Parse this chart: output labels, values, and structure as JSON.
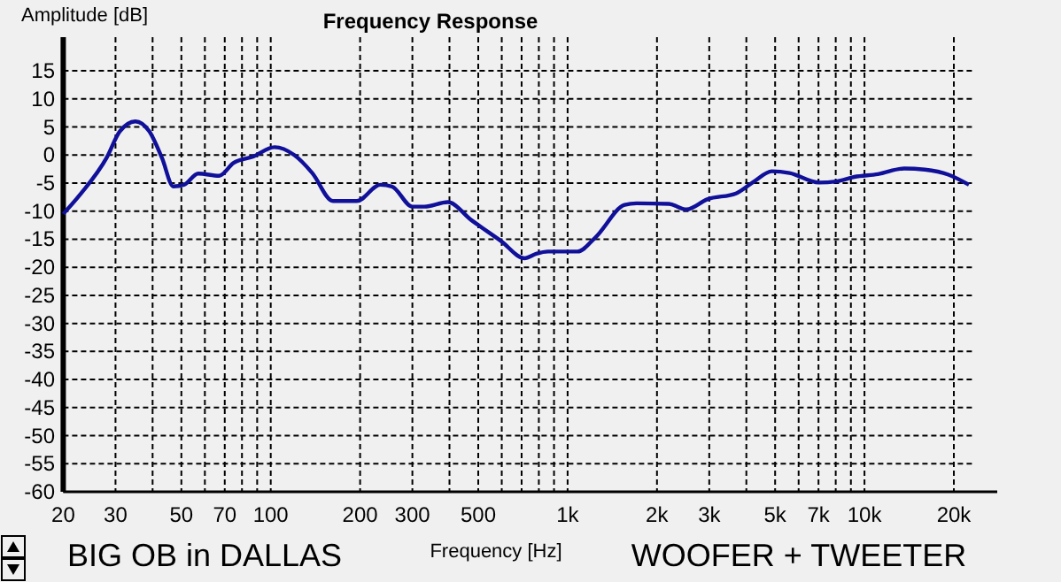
{
  "chart_data": {
    "type": "line",
    "title": "Frequency Response",
    "xlabel": "Frequency [Hz]",
    "ylabel": "Amplitude [dB]",
    "annotations": [
      "BIG OB in DALLAS",
      "WOOFER + TWEETER"
    ],
    "log": "x",
    "grid": true,
    "marker": "none",
    "line_style": "solid",
    "xlim": [
      20,
      28000
    ],
    "ylim": [
      -60,
      21
    ],
    "xticks": [
      20,
      30,
      {
        "value": 40,
        "label": null
      },
      50,
      {
        "value": 60,
        "label": null
      },
      70,
      {
        "value": 80,
        "label": null
      },
      {
        "value": 90,
        "label": null
      },
      100,
      200,
      300,
      {
        "value": 400,
        "label": null
      },
      500,
      {
        "value": 600,
        "label": null
      },
      {
        "value": 700,
        "label": null
      },
      {
        "value": 800,
        "label": null
      },
      {
        "value": 900,
        "label": null
      },
      {
        "value": 1000,
        "label": "1k"
      },
      {
        "value": 2000,
        "label": "2k"
      },
      {
        "value": 3000,
        "label": "3k"
      },
      {
        "value": 4000,
        "label": null
      },
      {
        "value": 5000,
        "label": "5k"
      },
      {
        "value": 6000,
        "label": null
      },
      {
        "value": 7000,
        "label": "7k"
      },
      {
        "value": 8000,
        "label": null
      },
      {
        "value": 9000,
        "label": null
      },
      {
        "value": 10000,
        "label": "10k"
      },
      {
        "value": 20000,
        "label": "20k"
      }
    ],
    "yticks": [
      -60,
      -55,
      -50,
      -45,
      -40,
      -35,
      -30,
      -25,
      -20,
      -15,
      -10,
      -5,
      0,
      5,
      10,
      15
    ],
    "x": [
      20,
      23,
      28,
      31,
      35,
      39,
      43,
      47,
      51,
      57,
      67,
      75,
      87,
      103,
      120,
      138,
      162,
      195,
      234,
      256,
      300,
      329,
      395,
      474,
      596,
      716,
      784,
      859,
      1080,
      1240,
      1556,
      1706,
      2194,
      2514,
      2953,
      3707,
      4250,
      4873,
      5590,
      7020,
      8050,
      9240,
      11100,
      13600,
      15960,
      19180,
      22480
    ],
    "series": [
      {
        "color": "#10109a",
        "values": [
          -10.5,
          -6.8,
          -0.5,
          4.2,
          6.0,
          4.2,
          -0.5,
          -5.6,
          -5.3,
          -3.3,
          -3.7,
          -1.4,
          -0.3,
          1.4,
          0,
          -3.2,
          -8.2,
          -8.2,
          -5.3,
          -5.6,
          -9.2,
          -9.2,
          -8.4,
          -11.6,
          -15.3,
          -18.4,
          -17.6,
          -17.2,
          -17.2,
          -14.7,
          -8.9,
          -8.6,
          -8.7,
          -9.7,
          -7.9,
          -6.8,
          -4.7,
          -2.9,
          -3.2,
          -4.9,
          -4.7,
          -3.9,
          -3.4,
          -2.4,
          -2.6,
          -3.5,
          -5.3
        ]
      }
    ]
  }
}
